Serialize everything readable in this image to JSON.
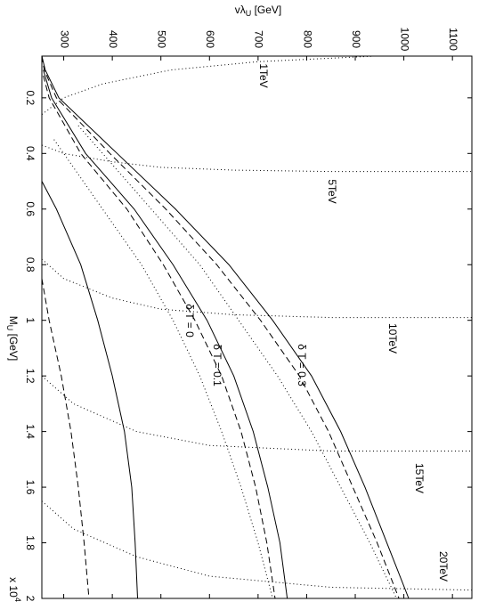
{
  "chart_data": {
    "type": "line",
    "x_label": [
      "M",
      "U",
      " [GeV]"
    ],
    "x_multiplier": [
      "x 10",
      "4"
    ],
    "y_label": [
      "vλ",
      "U",
      " [GeV]"
    ],
    "xlim": [
      0.05,
      2
    ],
    "xticks": [
      0.2,
      0.4,
      0.6,
      0.8,
      1,
      1.2,
      1.4,
      1.6,
      1.8,
      2
    ],
    "ylim": [
      255,
      1140
    ],
    "yticks": [
      300,
      400,
      500,
      600,
      700,
      800,
      900,
      1000,
      1100
    ],
    "grid": false,
    "annotations": [
      "1TeV",
      "5TeV",
      "10TeV",
      "15TeV",
      "20TeV",
      "δ T = 0",
      "δ T = 0.1",
      "δ T = 0.3"
    ],
    "series": [
      {
        "style": "solid",
        "color": "#000000",
        "x": [
          0.05,
          0.1,
          0.2,
          0.4,
          0.6,
          0.8,
          1,
          1.2,
          1.4,
          1.6,
          1.8,
          2
        ],
        "values": [
          255,
          262,
          290,
          410,
          530,
          640,
          730,
          810,
          870,
          920,
          965,
          1010
        ]
      },
      {
        "style": "dashed",
        "color": "#000000",
        "x": [
          0.05,
          0.1,
          0.2,
          0.4,
          0.6,
          0.8,
          1,
          1.2,
          1.4,
          1.6,
          1.8,
          2
        ],
        "values": [
          255,
          260,
          285,
          395,
          510,
          615,
          705,
          785,
          845,
          895,
          945,
          990
        ]
      },
      {
        "style": "dotted",
        "color": "#000000",
        "x": [
          0.3,
          0.6,
          0.8,
          1,
          1.2,
          1.4,
          1.6,
          1.8,
          2
        ],
        "values": [
          330,
          480,
          580,
          660,
          740,
          810,
          870,
          930,
          985
        ]
      },
      {
        "style": "solid",
        "color": "#000000",
        "x": [
          0.1,
          0.2,
          0.4,
          0.6,
          0.8,
          1,
          1.2,
          1.4,
          1.6,
          1.8,
          2
        ],
        "values": [
          258,
          275,
          345,
          445,
          525,
          595,
          650,
          690,
          720,
          745,
          760
        ]
      },
      {
        "style": "dashed",
        "color": "#000000",
        "x": [
          0.12,
          0.2,
          0.4,
          0.6,
          0.8,
          1,
          1.2,
          1.4,
          1.6,
          1.8,
          2
        ],
        "values": [
          258,
          270,
          335,
          430,
          505,
          570,
          625,
          665,
          695,
          718,
          735
        ]
      },
      {
        "style": "dotted",
        "color": "#000000",
        "x": [
          0.35,
          0.6,
          0.8,
          1,
          1.2,
          1.4,
          1.6,
          1.8,
          2
        ],
        "values": [
          280,
          380,
          460,
          525,
          580,
          625,
          665,
          700,
          730
        ]
      },
      {
        "style": "solid",
        "color": "#000000",
        "x": [
          0.5,
          0.6,
          0.8,
          1,
          1.2,
          1.4,
          1.6,
          1.8,
          2
        ],
        "values": [
          255,
          285,
          335,
          370,
          400,
          425,
          440,
          447,
          452
        ]
      },
      {
        "style": "dashed",
        "color": "#000000",
        "x": [
          0.85,
          1,
          1.2,
          1.4,
          1.6,
          1.8,
          2
        ],
        "values": [
          255,
          270,
          295,
          315,
          330,
          342,
          352
        ]
      },
      {
        "style": "dotted",
        "color": "#000000",
        "x": [
          0.05,
          0.07,
          0.1,
          0.15,
          0.2,
          0.26
        ],
        "values": [
          940,
          700,
          520,
          380,
          300,
          255
        ]
      },
      {
        "style": "dotted",
        "color": "#000000",
        "x": [
          0.37,
          0.4,
          0.43,
          0.45,
          0.46,
          0.465,
          0.465
        ],
        "values": [
          255,
          300,
          400,
          500,
          650,
          850,
          1140
        ]
      },
      {
        "style": "dotted",
        "color": "#000000",
        "x": [
          0.78,
          0.85,
          0.92,
          0.96,
          0.98,
          0.99,
          0.99
        ],
        "values": [
          255,
          300,
          400,
          500,
          650,
          850,
          1140
        ]
      },
      {
        "style": "dotted",
        "color": "#000000",
        "x": [
          1.2,
          1.3,
          1.4,
          1.45,
          1.47,
          1.47
        ],
        "values": [
          255,
          320,
          450,
          600,
          850,
          1140
        ]
      },
      {
        "style": "dotted",
        "color": "#000000",
        "x": [
          1.65,
          1.75,
          1.85,
          1.92,
          1.96,
          1.97
        ],
        "values": [
          255,
          320,
          450,
          600,
          850,
          1140
        ]
      }
    ]
  }
}
